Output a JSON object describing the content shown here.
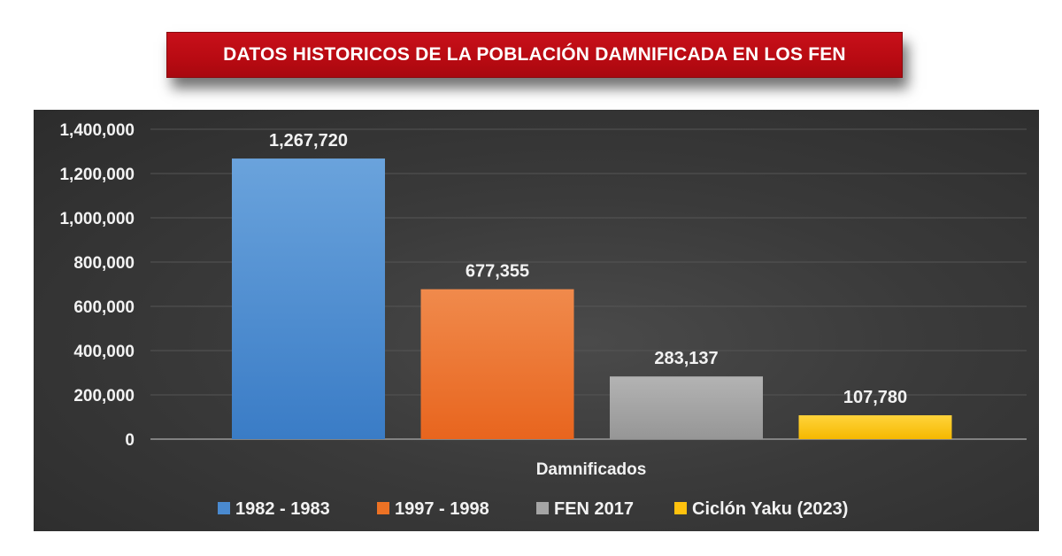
{
  "title": "DATOS HISTORICOS DE LA POBLACIÓN DAMNIFICADA EN LOS FEN",
  "chart_data": {
    "type": "bar",
    "categories": [
      "Damnificados"
    ],
    "xlabel": "Damnificados",
    "ylabel": "",
    "ylim": [
      0,
      1400000
    ],
    "yticks": [
      0,
      200000,
      400000,
      600000,
      800000,
      1000000,
      1200000,
      1400000
    ],
    "ytick_labels": [
      "0",
      "200,000",
      "400,000",
      "600,000",
      "800,000",
      "1,000,000",
      "1,200,000",
      "1,400,000"
    ],
    "grid": true,
    "legend_position": "bottom",
    "series": [
      {
        "name": "1982 - 1983",
        "values": [
          1267720
        ],
        "label": "1,267,720",
        "color": "#4a8ad0"
      },
      {
        "name": "1997 - 1998",
        "values": [
          677355
        ],
        "label": "677,355",
        "color": "#ed7224"
      },
      {
        "name": "FEN 2017",
        "values": [
          283137
        ],
        "label": "283,137",
        "color": "#a5a5a5"
      },
      {
        "name": "Ciclón Yaku (2023)",
        "values": [
          107780
        ],
        "label": "107,780",
        "color": "#ffc20e"
      }
    ]
  }
}
